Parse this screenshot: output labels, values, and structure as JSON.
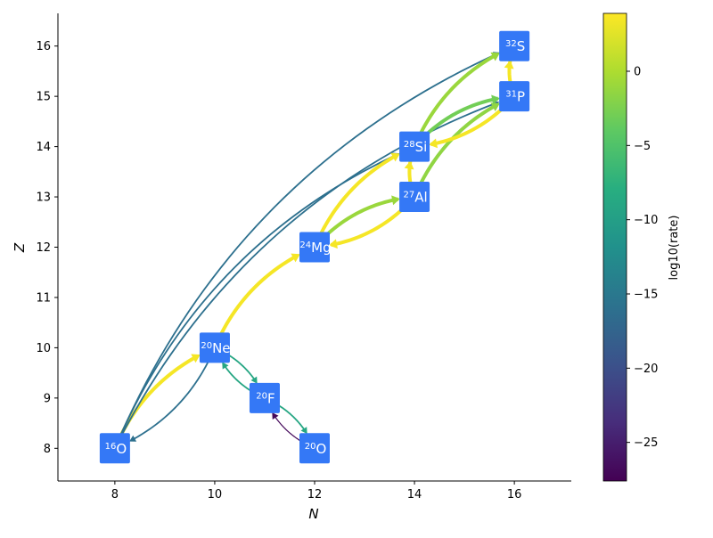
{
  "chart_data": {
    "type": "network",
    "xlabel": "N",
    "ylabel": "Z",
    "xlim": [
      6.86,
      17.14
    ],
    "ylim": [
      7.35,
      16.65
    ],
    "xticks": [
      8,
      10,
      12,
      14,
      16
    ],
    "yticks": [
      8,
      9,
      10,
      11,
      12,
      13,
      14,
      15,
      16
    ],
    "node_color": "#3478f6",
    "colorbar": {
      "label": "log10(rate)",
      "range": [
        -27.6,
        3.9
      ],
      "ticks": [
        0,
        -5,
        -10,
        -15,
        -20,
        -25
      ],
      "tick_labels": [
        "0",
        "−5",
        "−10",
        "−15",
        "−20",
        "−25"
      ],
      "colormap": "viridis"
    },
    "nodes": [
      {
        "id": "o16",
        "mass": "16",
        "element": "O",
        "N": 8,
        "Z": 8
      },
      {
        "id": "ne20",
        "mass": "20",
        "element": "Ne",
        "N": 10,
        "Z": 10
      },
      {
        "id": "f20",
        "mass": "20",
        "element": "F",
        "N": 11,
        "Z": 9
      },
      {
        "id": "o20",
        "mass": "20",
        "element": "O",
        "N": 12,
        "Z": 8
      },
      {
        "id": "mg24",
        "mass": "24",
        "element": "Mg",
        "N": 12,
        "Z": 12
      },
      {
        "id": "al27",
        "mass": "27",
        "element": "Al",
        "N": 14,
        "Z": 13
      },
      {
        "id": "si28",
        "mass": "28",
        "element": "Si",
        "N": 14,
        "Z": 14
      },
      {
        "id": "p31",
        "mass": "31",
        "element": "P",
        "N": 16,
        "Z": 15
      },
      {
        "id": "s32",
        "mass": "32",
        "element": "S",
        "N": 16,
        "Z": 16
      }
    ],
    "edges": [
      {
        "from": "o16",
        "to": "ne20",
        "log10_rate": 3.5
      },
      {
        "from": "ne20",
        "to": "o16",
        "log10_rate": -16
      },
      {
        "from": "ne20",
        "to": "mg24",
        "log10_rate": 3.5
      },
      {
        "from": "ne20",
        "to": "f20",
        "log10_rate": -9
      },
      {
        "from": "f20",
        "to": "ne20",
        "log10_rate": -9
      },
      {
        "from": "f20",
        "to": "o20",
        "log10_rate": -9
      },
      {
        "from": "o20",
        "to": "f20",
        "log10_rate": -27
      },
      {
        "from": "o16",
        "to": "si28",
        "log10_rate": -16
      },
      {
        "from": "o16",
        "to": "p31",
        "log10_rate": -16
      },
      {
        "from": "o16",
        "to": "s32",
        "log10_rate": -16
      },
      {
        "from": "mg24",
        "to": "al27",
        "log10_rate": -1
      },
      {
        "from": "mg24",
        "to": "si28",
        "log10_rate": 3.5
      },
      {
        "from": "al27",
        "to": "mg24",
        "log10_rate": 3.5
      },
      {
        "from": "al27",
        "to": "si28",
        "log10_rate": 3.5
      },
      {
        "from": "al27",
        "to": "p31",
        "log10_rate": -1.5
      },
      {
        "from": "si28",
        "to": "p31",
        "log10_rate": -3
      },
      {
        "from": "si28",
        "to": "s32",
        "log10_rate": -1
      },
      {
        "from": "p31",
        "to": "si28",
        "log10_rate": 3.5
      },
      {
        "from": "p31",
        "to": "s32",
        "log10_rate": 3.5
      }
    ]
  }
}
